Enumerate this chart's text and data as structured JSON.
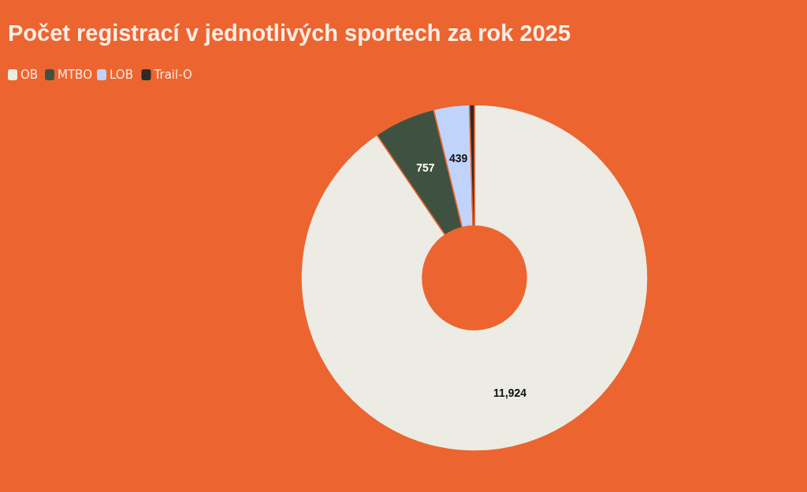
{
  "chart_data": {
    "type": "donut",
    "title": "Počet registrací v jednotlivých sportech za rok 2025",
    "categories": [
      "OB",
      "MTBO",
      "LOB",
      "Trail-O"
    ],
    "values": [
      11924,
      757,
      439,
      60
    ],
    "colors": [
      "#ecebe4",
      "#3f5241",
      "#c0d3fb",
      "#2e2a28"
    ],
    "value_labels": [
      "11,924",
      "757",
      "439",
      null
    ],
    "legend": "top left"
  }
}
